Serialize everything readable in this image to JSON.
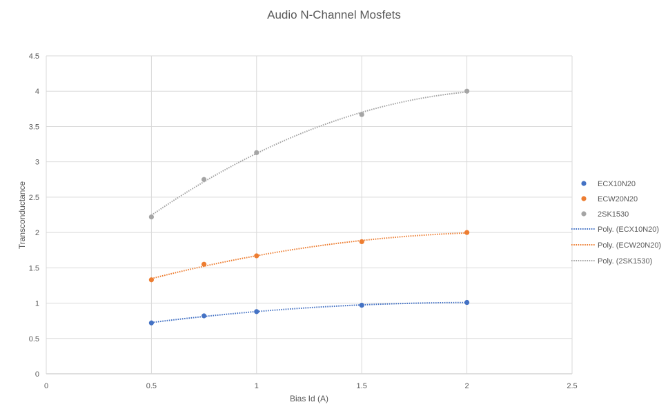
{
  "chart_data": {
    "type": "scatter",
    "title": "Audio N-Channel Mosfets",
    "xlabel": "Bias Id (A)",
    "ylabel": "Transconductance",
    "xlim": [
      0,
      2.5
    ],
    "ylim": [
      0,
      4.5
    ],
    "xticks": [
      "0",
      "0.5",
      "1",
      "1.5",
      "2",
      "2.5"
    ],
    "yticks": [
      "0",
      "0.5",
      "1",
      "1.5",
      "2",
      "2.5",
      "3",
      "3.5",
      "4",
      "4.5"
    ],
    "grid": true,
    "legend_position": "right",
    "series": [
      {
        "name": "ECX10N20",
        "color": "#4472C4",
        "x": [
          0.5,
          0.75,
          1,
          1.5,
          2
        ],
        "y": [
          0.72,
          0.82,
          0.88,
          0.97,
          1.01
        ]
      },
      {
        "name": "ECW20N20",
        "color": "#ED7D31",
        "x": [
          0.5,
          0.75,
          1,
          1.5,
          2
        ],
        "y": [
          1.33,
          1.55,
          1.67,
          1.87,
          2.0
        ]
      },
      {
        "name": "2SK1530",
        "color": "#A5A5A5",
        "x": [
          0.5,
          0.75,
          1,
          1.5,
          2
        ],
        "y": [
          2.22,
          2.75,
          3.13,
          3.67,
          4.0
        ]
      }
    ],
    "trendlines": [
      {
        "name": "Poly. (ECX10N20)",
        "type": "polynomial",
        "series": "ECX10N20",
        "color": "#4472C4"
      },
      {
        "name": "Poly. (ECW20N20)",
        "type": "polynomial",
        "series": "ECW20N20",
        "color": "#ED7D31"
      },
      {
        "name": "Poly. (2SK1530)",
        "type": "polynomial",
        "series": "2SK1530",
        "color": "#A5A5A5"
      }
    ]
  }
}
